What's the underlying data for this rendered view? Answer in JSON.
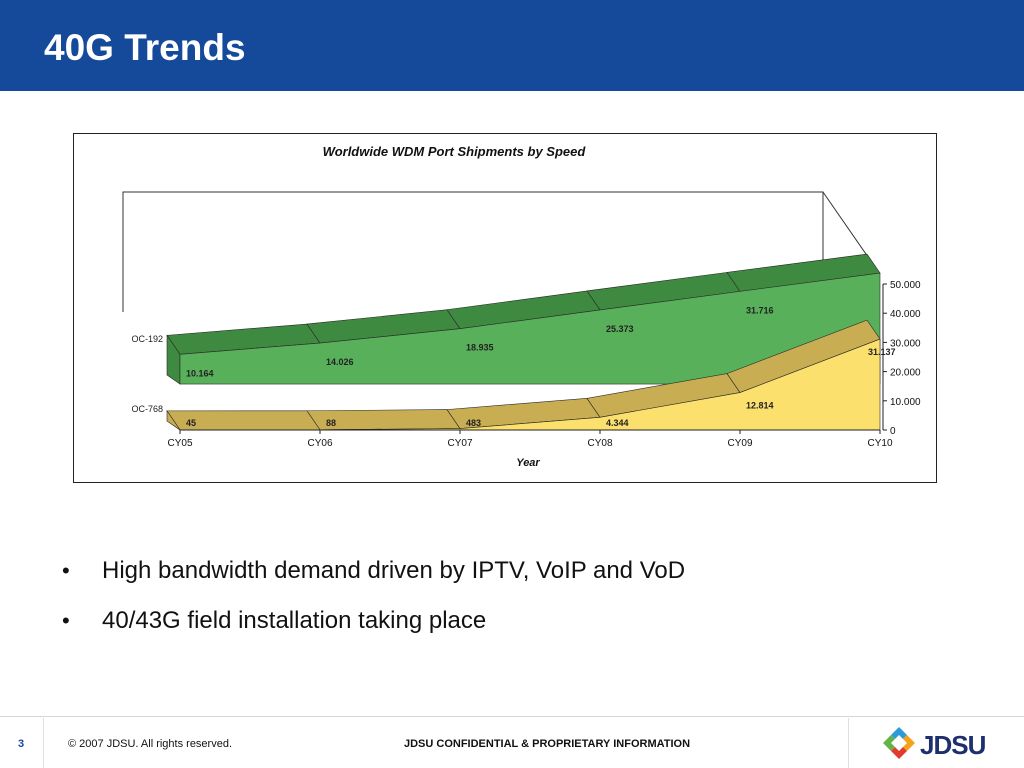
{
  "slide": {
    "title": "40G Trends",
    "bullets": [
      "High bandwidth demand driven by IPTV, VoIP and VoD",
      "40/43G field installation taking place"
    ]
  },
  "footer": {
    "page_number": "3",
    "copyright": "© 2007 JDSU. All rights reserved.",
    "confidential": "JDSU CONFIDENTIAL & PROPRIETARY INFORMATION",
    "logo_text": "JDSU"
  },
  "colors": {
    "header": "#154a9b",
    "oc192_front": "#58b05a",
    "oc192_top": "#3f8a41",
    "oc768_front": "#fbe06e",
    "oc768_top": "#c9ad52",
    "floor": "#7d7d7d"
  },
  "chart_data": {
    "type": "area",
    "title": "Worldwide WDM Port Shipments by Speed",
    "xlabel": "Year",
    "ylabel": "",
    "categories": [
      "CY05",
      "CY06",
      "CY07",
      "CY08",
      "CY09",
      "CY10"
    ],
    "y_ticks": [
      "0",
      "10.000",
      "20.000",
      "30.000",
      "40.000",
      "50.000"
    ],
    "ylim": [
      0,
      50000
    ],
    "three_d": true,
    "series": [
      {
        "name": "OC-192",
        "values": [
          10164,
          14026,
          18935,
          25373,
          31716,
          38000
        ],
        "labels": [
          "10.164",
          "14.026",
          "18.935",
          "25.373",
          "31.716",
          ""
        ]
      },
      {
        "name": "OC-768",
        "values": [
          45,
          88,
          483,
          4344,
          12814,
          31137
        ],
        "labels": [
          "45",
          "88",
          "483",
          "4.344",
          "12.814",
          "31.137"
        ]
      }
    ]
  }
}
